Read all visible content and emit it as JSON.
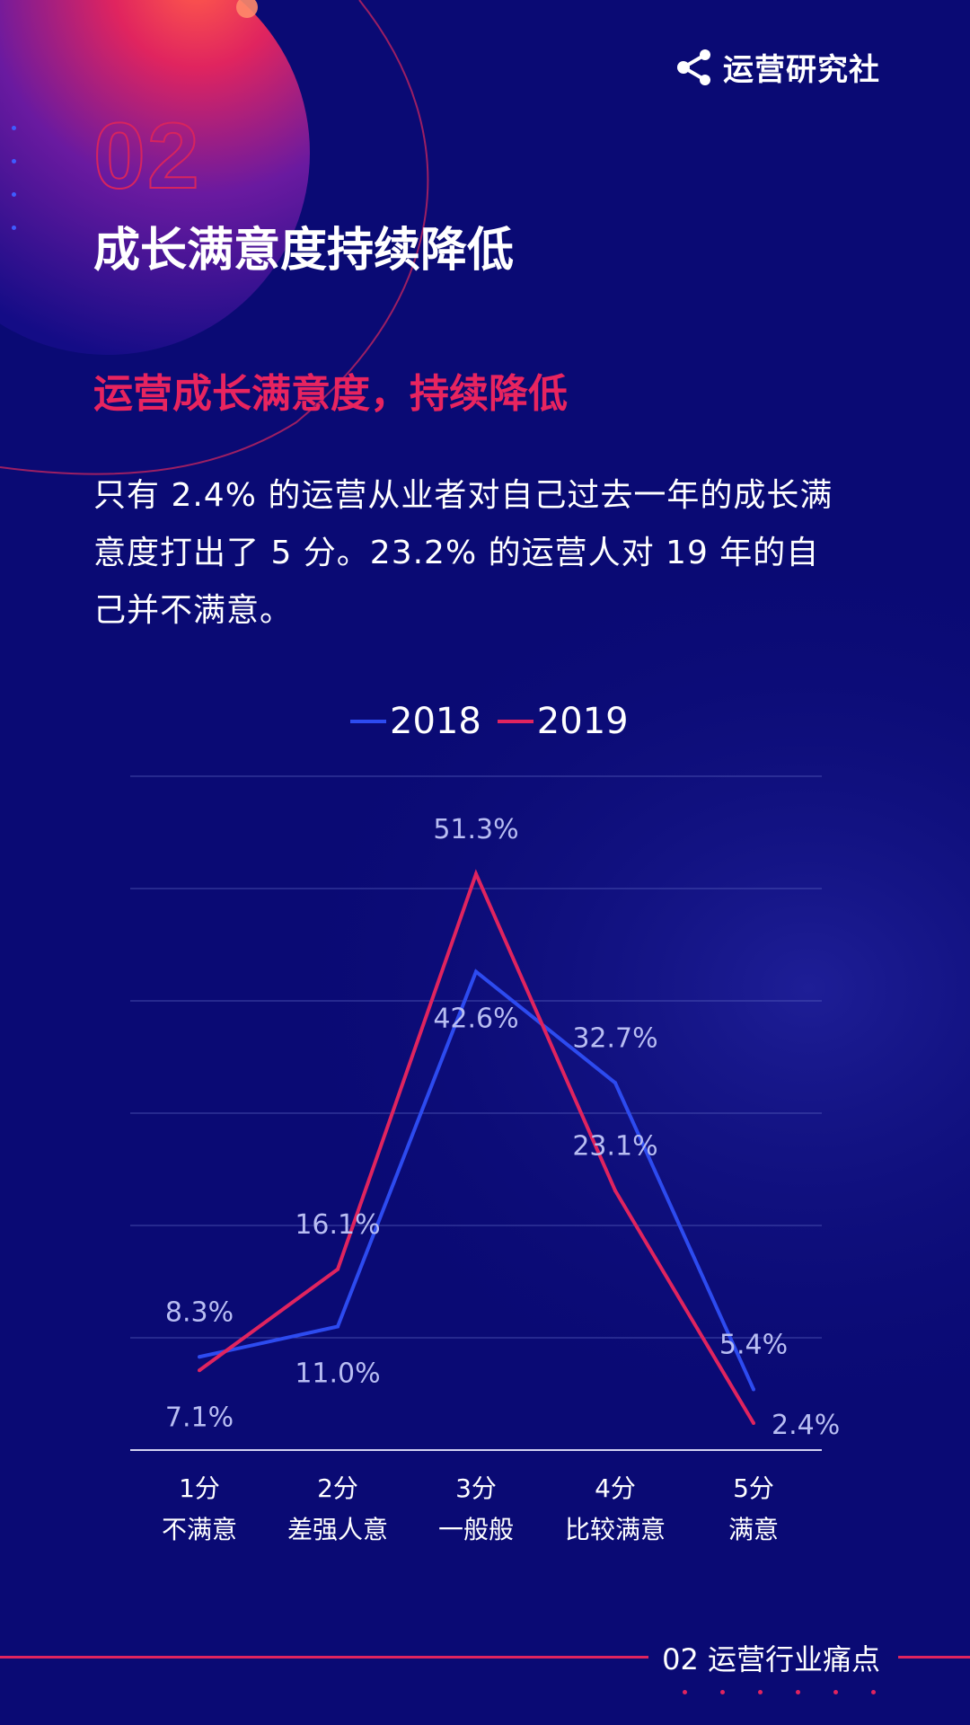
{
  "brand": {
    "name": "运营研究社",
    "icon": "share-icon"
  },
  "section": {
    "number": "02",
    "title": "成长满意度持续降低",
    "subtitle": "运营成长满意度，持续降低",
    "body_lines": [
      "只有 2.4% 的运营从业者对自己过去一年的成长满",
      "意度打出了 5 分。23.2% 的运营人对 19 年的自",
      "己并不满意。"
    ]
  },
  "colors": {
    "background": "#0a0a74",
    "accent": "#e8245f",
    "series_2018": "#2d4bf0",
    "series_2019": "#e0245f"
  },
  "chart_data": {
    "type": "line",
    "title": "",
    "xlabel": "",
    "ylabel": "",
    "ylim": [
      0,
      60
    ],
    "grid": true,
    "legend_position": "top",
    "categories": [
      [
        "1分",
        "不满意"
      ],
      [
        "2分",
        "差强人意"
      ],
      [
        "3分",
        "一般般"
      ],
      [
        "4分",
        "比较满意"
      ],
      [
        "5分",
        "满意"
      ]
    ],
    "series": [
      {
        "name": "2018",
        "color": "#2d4bf0",
        "values": [
          8.3,
          11.0,
          42.6,
          32.7,
          5.4
        ],
        "labels": [
          "8.3%",
          "11.0%",
          "42.6%",
          "32.7%",
          "5.4%"
        ],
        "label_sides": [
          "above",
          "below",
          "below",
          "above",
          "above"
        ]
      },
      {
        "name": "2019",
        "color": "#e0245f",
        "values": [
          7.1,
          16.1,
          51.3,
          23.1,
          2.4
        ],
        "labels": [
          "7.1%",
          "16.1%",
          "51.3%",
          "23.1%",
          "2.4%"
        ],
        "label_sides": [
          "below",
          "above",
          "above",
          "above",
          "right"
        ]
      }
    ]
  },
  "footer": {
    "label": "02 运营行业痛点"
  }
}
